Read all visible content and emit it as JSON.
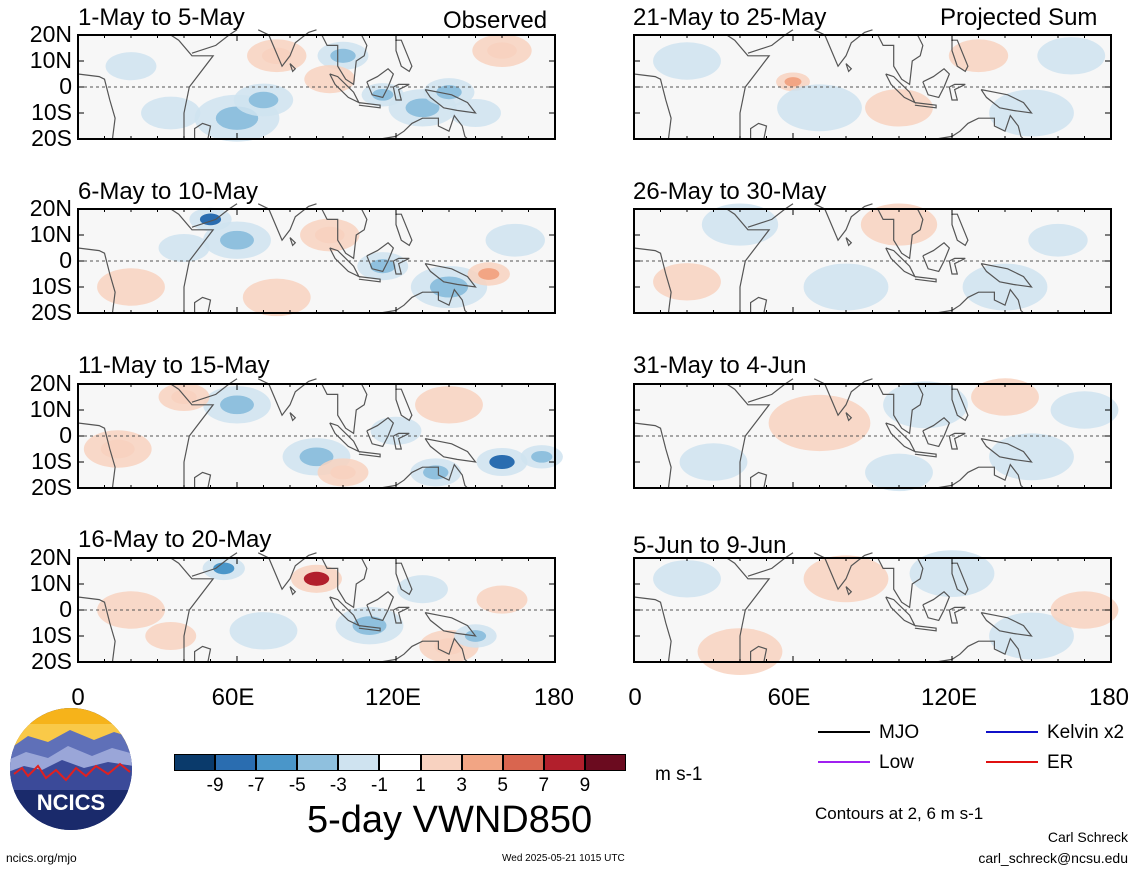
{
  "header": {
    "left_label": "Observed",
    "right_label": "Projected Sum"
  },
  "panels_left": [
    {
      "title": "1-May to 5-May"
    },
    {
      "title": "6-May to 10-May"
    },
    {
      "title": "11-May to 15-May"
    },
    {
      "title": "16-May to 20-May"
    }
  ],
  "panels_right": [
    {
      "title": "21-May to 25-May"
    },
    {
      "title": "26-May to 30-May"
    },
    {
      "title": "31-May to 4-Jun"
    },
    {
      "title": "5-Jun to 9-Jun"
    }
  ],
  "y_ticks": [
    "20N",
    "10N",
    "0",
    "10S",
    "20S"
  ],
  "x_ticks": [
    "0",
    "60E",
    "120E",
    "180"
  ],
  "colorbar": {
    "colors": [
      "#0a3a6b",
      "#2a6db0",
      "#4a96c9",
      "#8fc0de",
      "#cfe3f0",
      "#ffffff",
      "#f8d2c0",
      "#f2a584",
      "#d9654f",
      "#b21f2c",
      "#6b0b1f"
    ],
    "labels": [
      "-9",
      "-7",
      "-5",
      "-3",
      "-1",
      "1",
      "3",
      "5",
      "7",
      "9"
    ],
    "units": "m s-1"
  },
  "main_title": "5-day VWND850",
  "legend": {
    "items": [
      {
        "label": "MJO",
        "color": "#000000"
      },
      {
        "label": "Kelvin x2",
        "color": "#1010c8"
      },
      {
        "label": "Low",
        "color": "#a020f0"
      },
      {
        "label": "ER",
        "color": "#e01010"
      }
    ],
    "contours_note": "Contours at 2, 6 m s-1"
  },
  "logo": {
    "text": "NCICS"
  },
  "footer": {
    "url": "ncics.org/mjo",
    "timestamp": "Wed 2025-05-21 1015 UTC",
    "author": "Carl Schreck",
    "email": "carl_schreck@ncsu.edu"
  },
  "chart_data": {
    "type": "heatmap",
    "title": "5-day VWND850",
    "units": "m s-1",
    "x_ticks": [
      "0",
      "60E",
      "120E",
      "180"
    ],
    "y_ticks": [
      "20N",
      "10N",
      "0",
      "10S",
      "20S"
    ],
    "xlim": [
      0,
      180
    ],
    "ylim": [
      -20,
      20
    ],
    "color_levels": [
      -9,
      -7,
      -5,
      -3,
      -1,
      1,
      3,
      5,
      7,
      9
    ],
    "panels": [
      {
        "title": "1-May to 5-May",
        "group": "Observed"
      },
      {
        "title": "6-May to 10-May",
        "group": "Observed"
      },
      {
        "title": "11-May to 15-May",
        "group": "Observed"
      },
      {
        "title": "16-May to 20-May",
        "group": "Observed"
      },
      {
        "title": "21-May to 25-May",
        "group": "Projected Sum"
      },
      {
        "title": "26-May to 30-May",
        "group": "Projected Sum"
      },
      {
        "title": "31-May to 4-Jun",
        "group": "Projected Sum"
      },
      {
        "title": "5-Jun to 9-Jun",
        "group": "Projected Sum"
      }
    ],
    "contour_series": [
      "MJO",
      "Kelvin x2",
      "Low",
      "ER"
    ]
  }
}
